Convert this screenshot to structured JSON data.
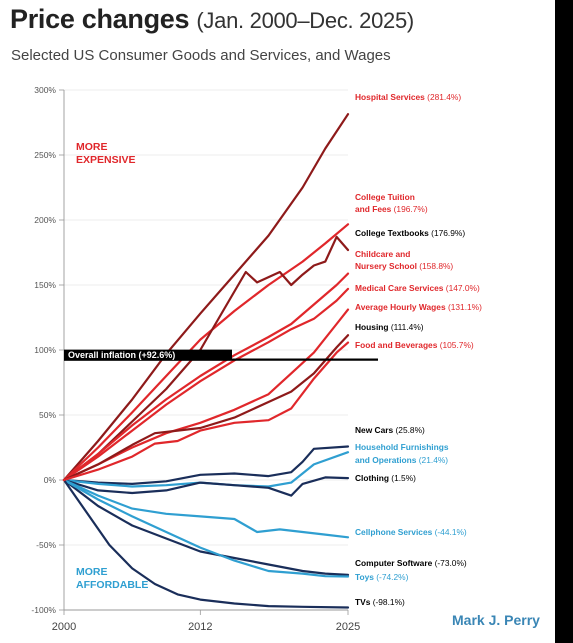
{
  "title": "Price changes",
  "title_range": "(Jan. 2000–Dec. 2025)",
  "subtitle": "Selected US Consumer Goods and Services, and Wages",
  "author": "Mark J. Perry",
  "regions": {
    "more_expensive": [
      "MORE",
      "EXPENSIVE"
    ],
    "more_affordable": [
      "MORE",
      "AFFORDABLE"
    ]
  },
  "overall_inflation": {
    "label": "Overall inflation (+92.6%)",
    "value": 92.6
  },
  "colors": {
    "red": "#e0272b",
    "dark_red": "#8e1a1a",
    "light_blue": "#2f9fd1",
    "dark_blue": "#1a2e5a",
    "black": "#000000"
  },
  "chart_data": {
    "type": "line",
    "x_range": [
      2000,
      2025
    ],
    "ylim": [
      -100,
      300
    ],
    "x_ticks": [
      "2000",
      "2012",
      "2025"
    ],
    "y_ticks": [
      "300%",
      "250%",
      "200%",
      "150%",
      "100%",
      "50%",
      "0%",
      "-50%",
      "-100%"
    ],
    "y_tick_values": [
      300,
      250,
      200,
      150,
      100,
      50,
      0,
      -50,
      -100
    ],
    "series": [
      {
        "key": "hospital",
        "name": "Hospital Services",
        "value_label": "(281.4%)",
        "color": "dark_red",
        "label_color": "red",
        "points": [
          [
            2000,
            0
          ],
          [
            2003,
            30
          ],
          [
            2006,
            62
          ],
          [
            2009,
            97
          ],
          [
            2012,
            128
          ],
          [
            2015,
            158
          ],
          [
            2018,
            188
          ],
          [
            2021,
            225
          ],
          [
            2023,
            255
          ],
          [
            2025,
            281.4
          ]
        ]
      },
      {
        "key": "tuition",
        "name": "College Tuition and Fees",
        "value_label": "(196.7%)",
        "color": "red",
        "label_color": "red",
        "points": [
          [
            2000,
            0
          ],
          [
            2003,
            25
          ],
          [
            2006,
            52
          ],
          [
            2009,
            80
          ],
          [
            2012,
            108
          ],
          [
            2015,
            130
          ],
          [
            2018,
            150
          ],
          [
            2021,
            168
          ],
          [
            2023,
            182
          ],
          [
            2025,
            196.7
          ]
        ]
      },
      {
        "key": "textbooks",
        "name": "College Textbooks",
        "value_label": "(176.9%)",
        "color": "dark_red",
        "label_color": "black",
        "points": [
          [
            2000,
            0
          ],
          [
            2003,
            20
          ],
          [
            2006,
            45
          ],
          [
            2009,
            70
          ],
          [
            2012,
            100
          ],
          [
            2014,
            130
          ],
          [
            2016,
            160
          ],
          [
            2017,
            152
          ],
          [
            2019,
            160
          ],
          [
            2020,
            150
          ],
          [
            2021,
            158
          ],
          [
            2022,
            165
          ],
          [
            2023,
            168
          ],
          [
            2024,
            187
          ],
          [
            2025,
            176.9
          ]
        ]
      },
      {
        "key": "childcare",
        "name": "Childcare and Nursery School",
        "value_label": "(158.8%)",
        "color": "red",
        "label_color": "red",
        "points": [
          [
            2000,
            0
          ],
          [
            2003,
            20
          ],
          [
            2006,
            42
          ],
          [
            2009,
            62
          ],
          [
            2012,
            80
          ],
          [
            2015,
            96
          ],
          [
            2018,
            110
          ],
          [
            2020,
            120
          ],
          [
            2022,
            135
          ],
          [
            2024,
            150
          ],
          [
            2025,
            158.8
          ]
        ]
      },
      {
        "key": "medical",
        "name": "Medical Care Services",
        "value_label": "(147.0%)",
        "color": "red",
        "label_color": "red",
        "points": [
          [
            2000,
            0
          ],
          [
            2003,
            18
          ],
          [
            2006,
            38
          ],
          [
            2009,
            58
          ],
          [
            2012,
            76
          ],
          [
            2015,
            92
          ],
          [
            2018,
            106
          ],
          [
            2020,
            116
          ],
          [
            2022,
            124
          ],
          [
            2024,
            138
          ],
          [
            2025,
            147.0
          ]
        ]
      },
      {
        "key": "wages",
        "name": "Average Hourly Wages",
        "value_label": "(131.1%)",
        "color": "red",
        "label_color": "red",
        "points": [
          [
            2000,
            0
          ],
          [
            2003,
            12
          ],
          [
            2006,
            25
          ],
          [
            2009,
            36
          ],
          [
            2012,
            44
          ],
          [
            2015,
            54
          ],
          [
            2018,
            66
          ],
          [
            2020,
            82
          ],
          [
            2022,
            98
          ],
          [
            2024,
            120
          ],
          [
            2025,
            131.1
          ]
        ]
      },
      {
        "key": "housing",
        "name": "Housing",
        "value_label": "(111.4%)",
        "color": "dark_red",
        "label_color": "black",
        "points": [
          [
            2000,
            0
          ],
          [
            2003,
            12
          ],
          [
            2006,
            27
          ],
          [
            2008,
            36
          ],
          [
            2010,
            38
          ],
          [
            2012,
            40
          ],
          [
            2015,
            48
          ],
          [
            2018,
            60
          ],
          [
            2020,
            68
          ],
          [
            2022,
            82
          ],
          [
            2024,
            102
          ],
          [
            2025,
            111.4
          ]
        ]
      },
      {
        "key": "food",
        "name": "Food and Beverages",
        "value_label": "(105.7%)",
        "color": "red",
        "label_color": "red",
        "points": [
          [
            2000,
            0
          ],
          [
            2003,
            8
          ],
          [
            2006,
            18
          ],
          [
            2008,
            28
          ],
          [
            2010,
            30
          ],
          [
            2012,
            38
          ],
          [
            2015,
            44
          ],
          [
            2018,
            46
          ],
          [
            2020,
            55
          ],
          [
            2022,
            78
          ],
          [
            2024,
            98
          ],
          [
            2025,
            105.7
          ]
        ]
      },
      {
        "key": "cars",
        "name": "New Cars",
        "value_label": "(25.8%)",
        "color": "dark_blue",
        "label_color": "black",
        "points": [
          [
            2000,
            0
          ],
          [
            2003,
            -2
          ],
          [
            2006,
            -3
          ],
          [
            2009,
            -1
          ],
          [
            2012,
            4
          ],
          [
            2015,
            5
          ],
          [
            2018,
            3
          ],
          [
            2020,
            6
          ],
          [
            2021,
            14
          ],
          [
            2022,
            24
          ],
          [
            2025,
            25.8
          ]
        ]
      },
      {
        "key": "furnishings",
        "name": "Household Furnishings and Operations",
        "value_label": "(21.4%)",
        "color": "light_blue",
        "label_color": "light_blue",
        "points": [
          [
            2000,
            0
          ],
          [
            2003,
            -3
          ],
          [
            2006,
            -5
          ],
          [
            2009,
            -4
          ],
          [
            2012,
            -2
          ],
          [
            2015,
            -4
          ],
          [
            2018,
            -5
          ],
          [
            2020,
            -2
          ],
          [
            2022,
            12
          ],
          [
            2025,
            21.4
          ]
        ]
      },
      {
        "key": "clothing",
        "name": "Clothing",
        "value_label": "(1.5%)",
        "color": "dark_blue",
        "label_color": "black",
        "points": [
          [
            2000,
            0
          ],
          [
            2003,
            -8
          ],
          [
            2006,
            -10
          ],
          [
            2009,
            -8
          ],
          [
            2012,
            -2
          ],
          [
            2015,
            -4
          ],
          [
            2018,
            -6
          ],
          [
            2020,
            -12
          ],
          [
            2021,
            -3
          ],
          [
            2023,
            2
          ],
          [
            2025,
            1.5
          ]
        ]
      },
      {
        "key": "cellphone",
        "name": "Cellphone Services",
        "value_label": "(-44.1%)",
        "color": "light_blue",
        "label_color": "light_blue",
        "points": [
          [
            2000,
            0
          ],
          [
            2003,
            -12
          ],
          [
            2006,
            -22
          ],
          [
            2009,
            -26
          ],
          [
            2012,
            -28
          ],
          [
            2015,
            -30
          ],
          [
            2017,
            -40
          ],
          [
            2019,
            -38
          ],
          [
            2021,
            -40
          ],
          [
            2023,
            -42
          ],
          [
            2025,
            -44.1
          ]
        ]
      },
      {
        "key": "software",
        "name": "Computer Software",
        "value_label": "(-73.0%)",
        "color": "dark_blue",
        "label_color": "black",
        "points": [
          [
            2000,
            0
          ],
          [
            2003,
            -20
          ],
          [
            2006,
            -35
          ],
          [
            2009,
            -45
          ],
          [
            2012,
            -55
          ],
          [
            2015,
            -60
          ],
          [
            2018,
            -65
          ],
          [
            2021,
            -70
          ],
          [
            2023,
            -72
          ],
          [
            2025,
            -73.0
          ]
        ]
      },
      {
        "key": "toys",
        "name": "Toys",
        "value_label": "(-74.2%)",
        "color": "light_blue",
        "label_color": "light_blue",
        "points": [
          [
            2000,
            0
          ],
          [
            2003,
            -15
          ],
          [
            2006,
            -28
          ],
          [
            2009,
            -40
          ],
          [
            2012,
            -52
          ],
          [
            2015,
            -62
          ],
          [
            2018,
            -70
          ],
          [
            2021,
            -72
          ],
          [
            2023,
            -74
          ],
          [
            2025,
            -74.2
          ]
        ]
      },
      {
        "key": "tvs",
        "name": "TVs",
        "value_label": "(-98.1%)",
        "color": "dark_blue",
        "label_color": "black",
        "points": [
          [
            2000,
            0
          ],
          [
            2002,
            -25
          ],
          [
            2004,
            -50
          ],
          [
            2006,
            -68
          ],
          [
            2008,
            -80
          ],
          [
            2010,
            -88
          ],
          [
            2012,
            -92
          ],
          [
            2015,
            -95
          ],
          [
            2018,
            -97
          ],
          [
            2021,
            -97.5
          ],
          [
            2025,
            -98.1
          ]
        ]
      }
    ]
  }
}
